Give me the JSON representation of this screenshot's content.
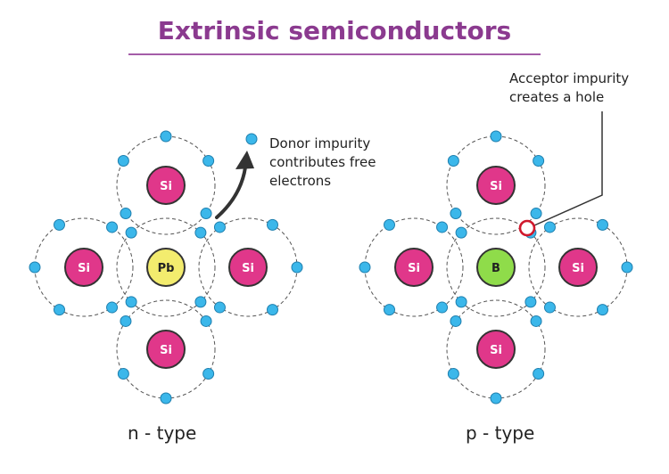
{
  "title": "Extrinsic semiconductors",
  "colors": {
    "title": "#8b3a8f",
    "title_rule": "#a45ca8",
    "silicon": "#e0378a",
    "donor": "#f3ec6e",
    "acceptor": "#8fdc4a",
    "electron": "#3bb7ea",
    "hole": "#d0182c",
    "orbit": "#555555",
    "arrow": "#333333"
  },
  "n_type": {
    "caption": "n - type",
    "center_atom": "Pb",
    "neighbor_atom": "Si",
    "note_lines": [
      "Donor impurity",
      "contributes free",
      "electrons"
    ]
  },
  "p_type": {
    "caption": "p - type",
    "center_atom": "B",
    "neighbor_atom": "Si",
    "note_lines": [
      "Acceptor impurity",
      "creates a hole"
    ]
  }
}
